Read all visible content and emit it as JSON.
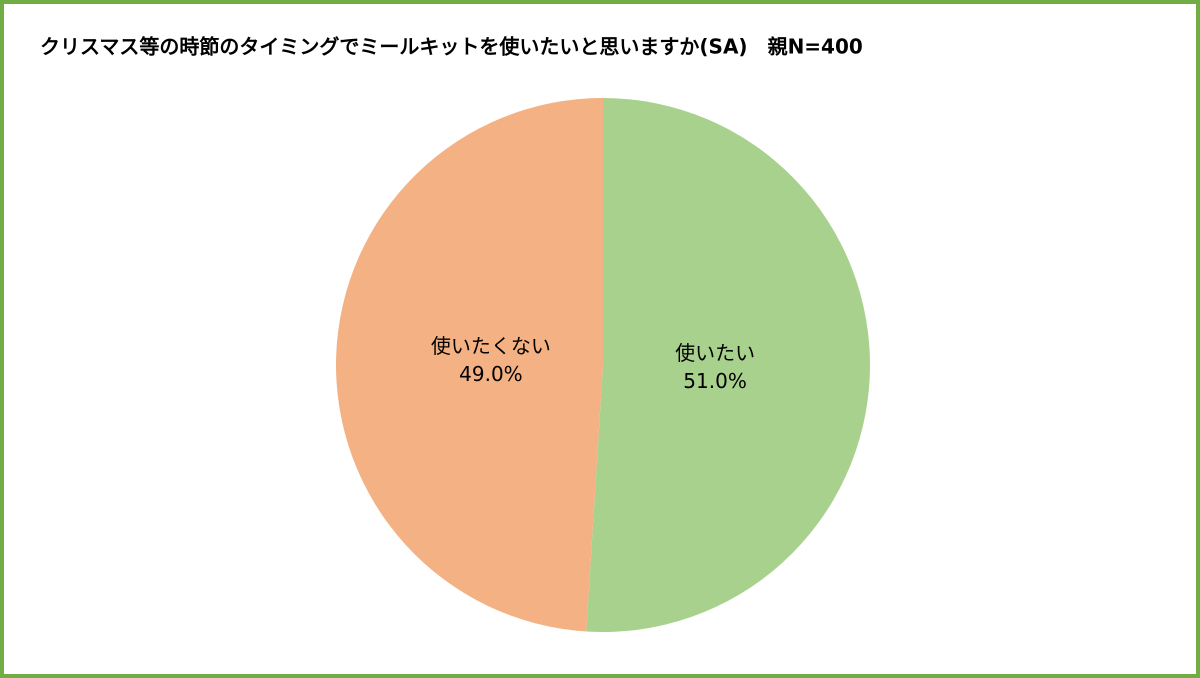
{
  "chart_data": {
    "type": "pie",
    "title": "クリスマス等の時節のタイミングでミールキットを使いたいと思いますか(SA)　親N=400",
    "categories": [
      "使いたい",
      "使いたくない"
    ],
    "values": [
      51,
      49
    ],
    "value_labels": [
      "51.0%",
      "49.0%"
    ],
    "colors": [
      "#a9d18e",
      "#f4b183"
    ]
  }
}
